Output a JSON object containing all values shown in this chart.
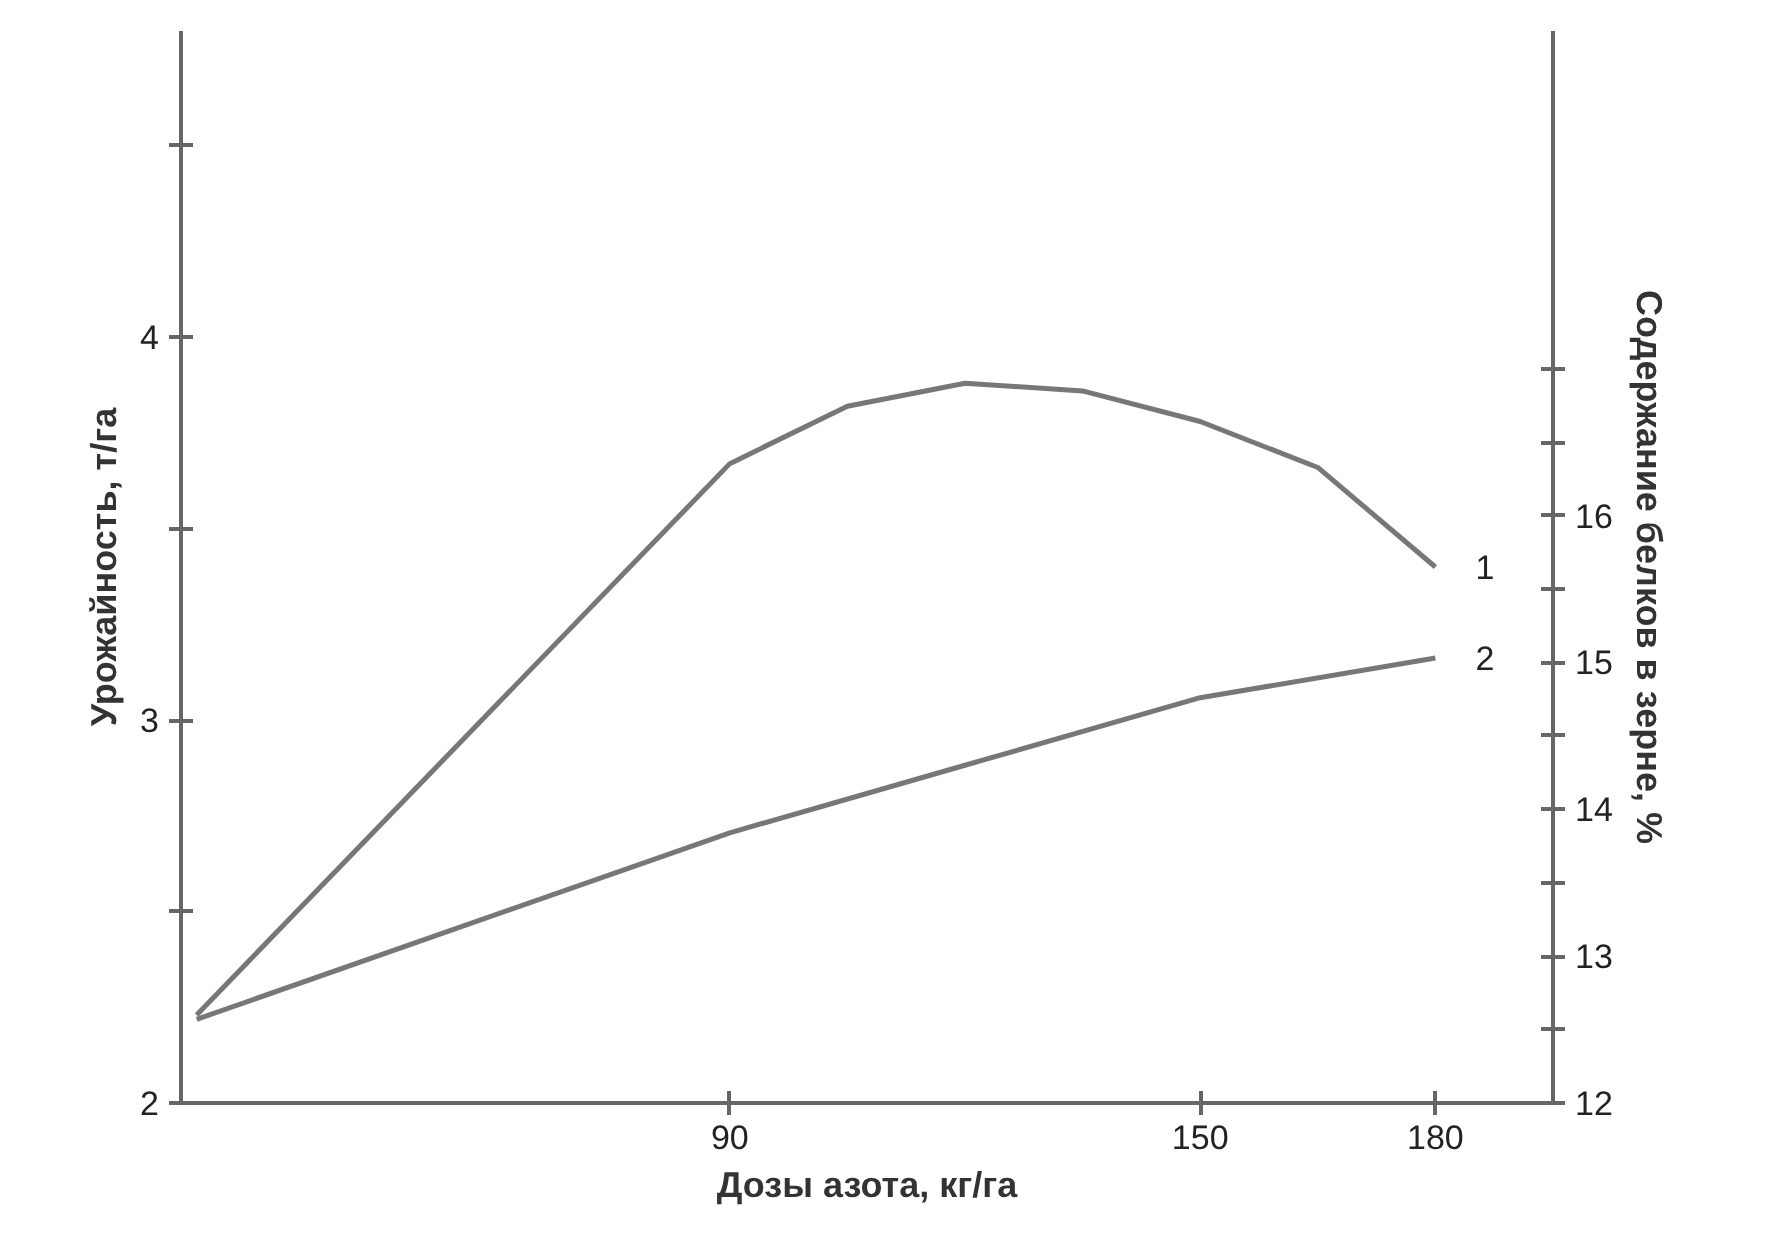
{
  "chart_data": {
    "type": "line",
    "xlabel": "Дозы азота, кг/га",
    "ylabel": "Урожайность, т/га",
    "y2label": "Содержание белков в зерне, %",
    "xlim": [
      20,
      195
    ],
    "xticks": [
      90,
      150,
      180
    ],
    "ylim": [
      2,
      4.8
    ],
    "yticks": [
      2,
      {
        "value": 2.5,
        "label": null
      },
      3,
      {
        "value": 3.5,
        "label": null
      },
      4,
      {
        "value": 4.5,
        "label": null
      }
    ],
    "y2lim": [
      12,
      19.3
    ],
    "y2ticks": [
      12,
      {
        "value": 12.5,
        "label": null
      },
      13,
      {
        "value": 13.5,
        "label": null
      },
      14,
      {
        "value": 14.5,
        "label": null
      },
      15,
      {
        "value": 15.5,
        "label": null
      },
      16,
      {
        "value": 16.5,
        "label": null
      },
      {
        "value": 17,
        "label": null
      }
    ],
    "grid": false,
    "marker": "none",
    "line_style": "solid",
    "series": [
      {
        "name": "1",
        "color": "#777777",
        "x": [
          22,
          90,
          105,
          120,
          135,
          150,
          165,
          180
        ],
        "values": [
          2.23,
          3.67,
          3.82,
          3.88,
          3.86,
          3.78,
          3.66,
          3.4
        ]
      },
      {
        "name": "2",
        "color": "#777777",
        "axis": "y2",
        "x": [
          22,
          90,
          120,
          150,
          180
        ],
        "values": [
          12.57,
          13.84,
          14.3,
          14.76,
          15.03
        ]
      }
    ]
  }
}
